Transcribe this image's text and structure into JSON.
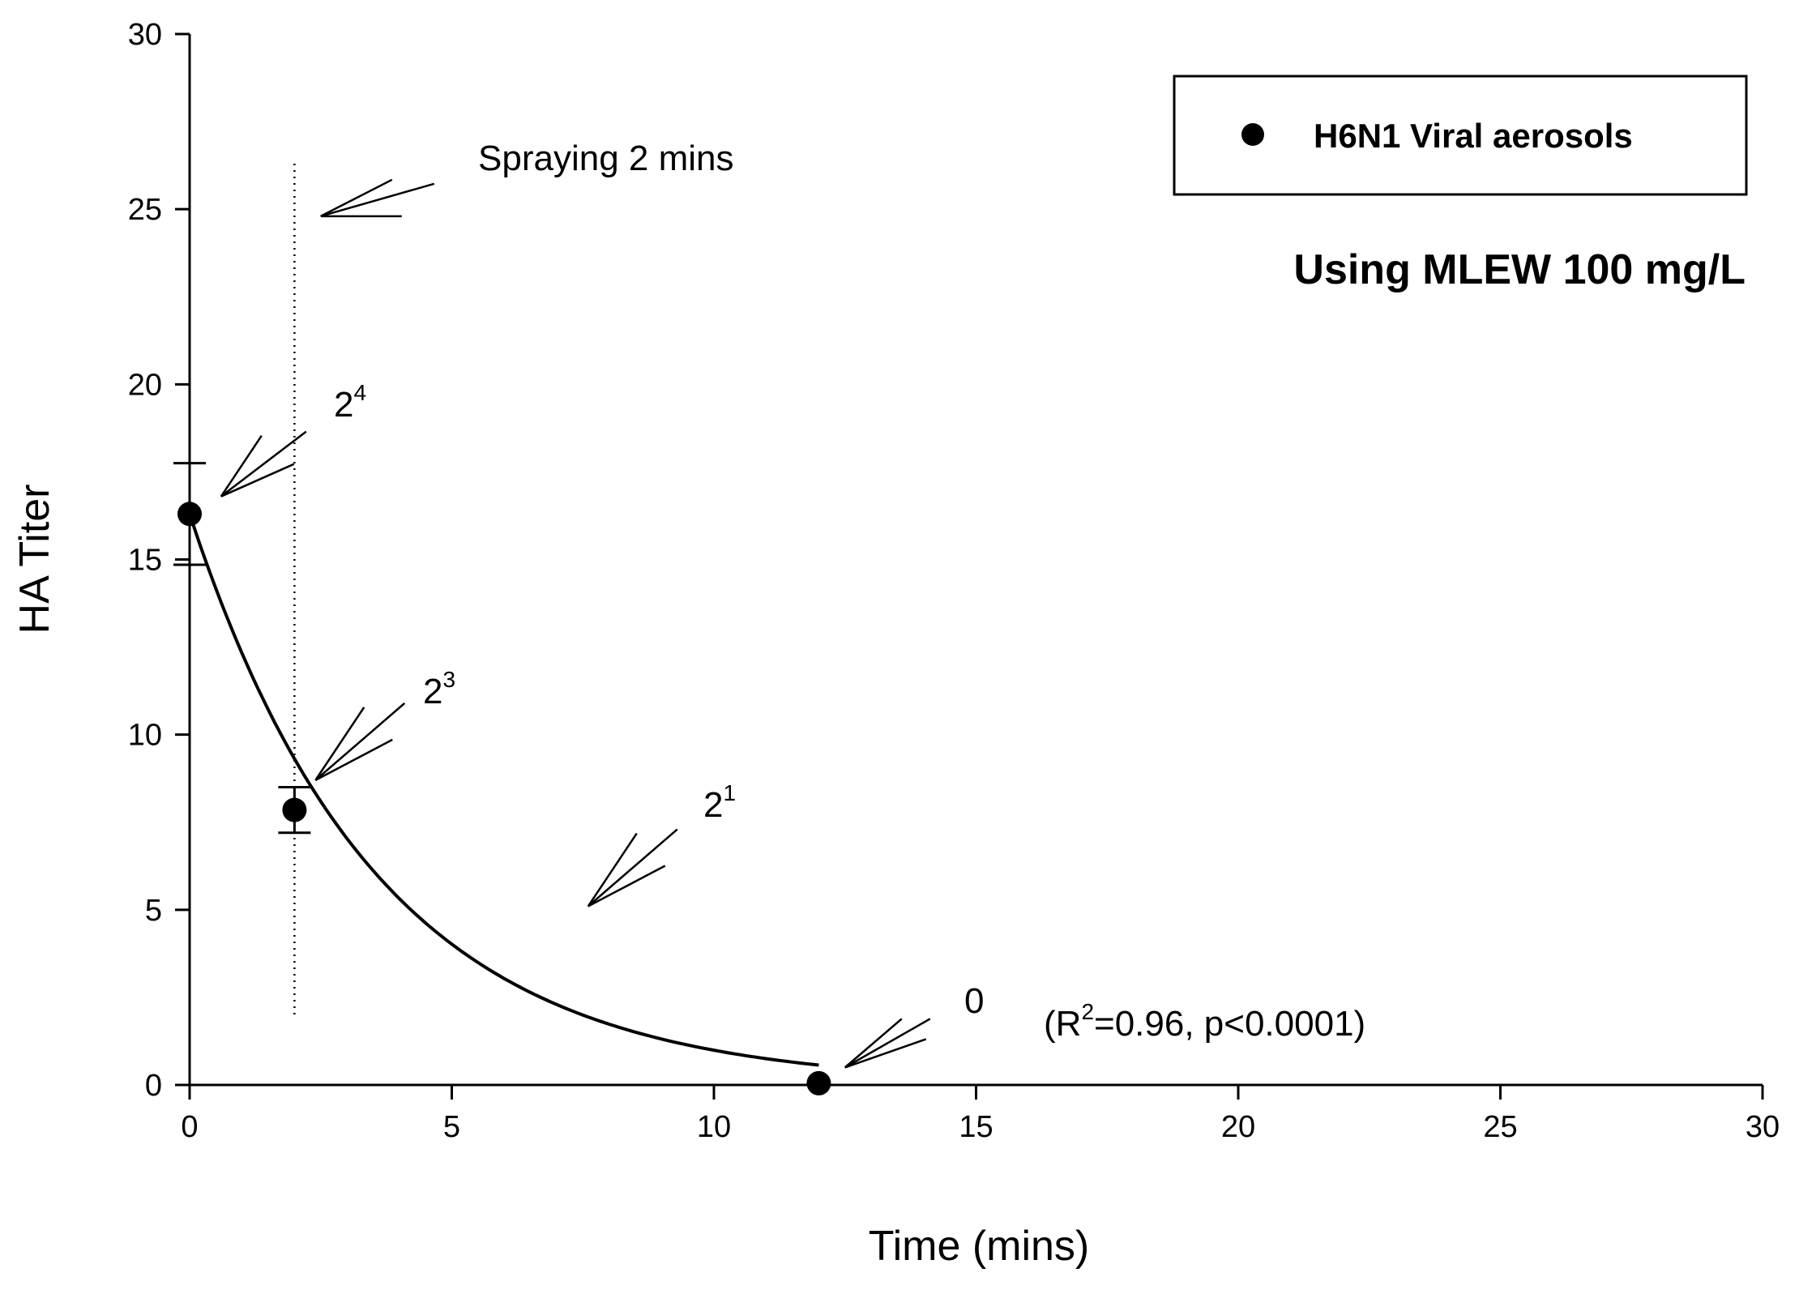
{
  "chart_data": {
    "type": "scatter",
    "xlabel": "Time (mins)",
    "ylabel": "HA Titer",
    "xlim": [
      0,
      30
    ],
    "ylim": [
      0,
      30
    ],
    "x_ticks": [
      "0",
      "5",
      "10",
      "15",
      "20",
      "25",
      "30"
    ],
    "y_ticks": [
      "0",
      "5",
      "10",
      "15",
      "20",
      "25",
      "30"
    ],
    "grid": false,
    "legend": {
      "position": "top-right",
      "label": "H6N1 Viral aerosols"
    },
    "subtitle": "Using MLEW 100 mg/L",
    "series": [
      {
        "name": "H6N1 Viral aerosols",
        "x": [
          0,
          2,
          12
        ],
        "y": [
          16.3,
          7.85,
          0.05
        ],
        "error": [
          1.45,
          0.65,
          0
        ]
      }
    ],
    "fit_curve": {
      "type": "exponential decay",
      "x_range": [
        0,
        12
      ],
      "a": 16.3,
      "k": 0.28,
      "stats": "(R2=0.96, p<0.0001)"
    },
    "spray_marker": {
      "x": 2,
      "y_range": [
        2,
        26.3
      ],
      "style": "dotted"
    },
    "annotations": [
      {
        "name": "spray",
        "text": "Spraying 2 mins",
        "tip": [
          2.5,
          24.8
        ]
      },
      {
        "name": "t0",
        "base": "2",
        "exp": "4",
        "tip": [
          0.6,
          16.8
        ]
      },
      {
        "name": "t2",
        "base": "2",
        "exp": "3",
        "tip": [
          2.4,
          8.7
        ]
      },
      {
        "name": "mid",
        "base": "2",
        "exp": "1",
        "tip": [
          7.6,
          5.1
        ]
      },
      {
        "name": "t12",
        "base": "0",
        "exp": "",
        "tip": [
          12.5,
          0.5
        ]
      }
    ],
    "stats_text": {
      "pre": "(R",
      "sup": "2",
      "post": "=0.96,  p<0.0001)"
    }
  }
}
